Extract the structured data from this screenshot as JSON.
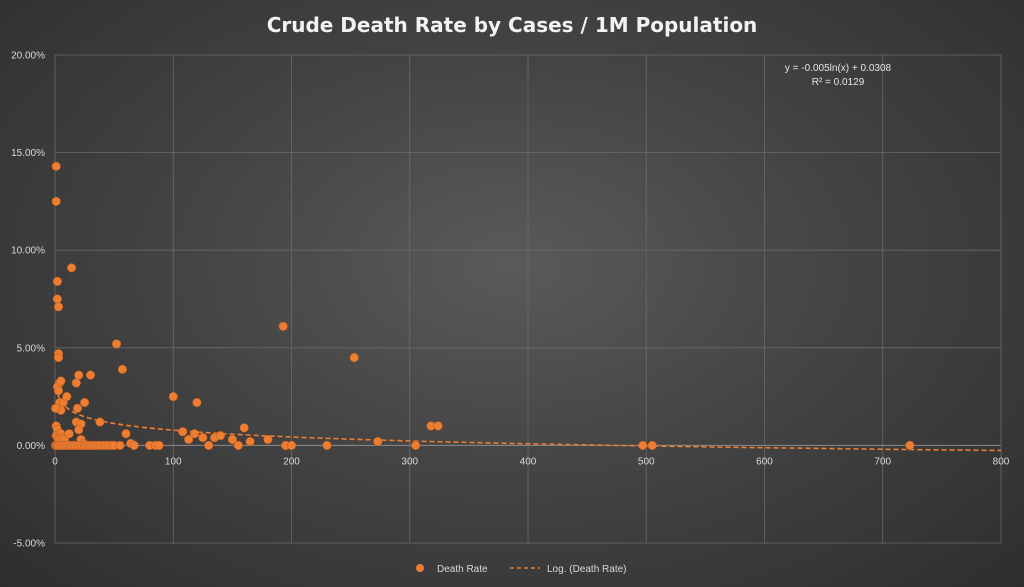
{
  "chart_data": {
    "type": "scatter",
    "title": "Crude Death Rate by Cases / 1M Population",
    "xlabel": "",
    "ylabel": "",
    "xlim": [
      0,
      800
    ],
    "ylim": [
      -0.05,
      0.2
    ],
    "x_ticks": [
      0,
      100,
      200,
      300,
      400,
      500,
      600,
      700,
      800
    ],
    "x_tick_labels": [
      "0",
      "100",
      "200",
      "300",
      "400",
      "500",
      "600",
      "700",
      "800"
    ],
    "y_ticks": [
      -0.05,
      0,
      0.05,
      0.1,
      0.15,
      0.2
    ],
    "y_tick_labels": [
      "-5.00%",
      "0.00%",
      "5.00%",
      "10.00%",
      "15.00%",
      "20.00%"
    ],
    "grid": true,
    "legend_position": "bottom",
    "series": [
      {
        "name": "Death Rate",
        "kind": "scatter",
        "color": "#ed7d31",
        "x": [
          1,
          1,
          2,
          2,
          3,
          3,
          3,
          4,
          14,
          2,
          3,
          5,
          4,
          5,
          7,
          0.5,
          1,
          2,
          10,
          18,
          20,
          19,
          30,
          52,
          57,
          1,
          2,
          3,
          5,
          6,
          8,
          12,
          18,
          22,
          25,
          38,
          100,
          108,
          118,
          120,
          113,
          125,
          135,
          140,
          150,
          160,
          165,
          180,
          193,
          253,
          318,
          324,
          273,
          20,
          22,
          24,
          60,
          64,
          0.5,
          1,
          2,
          3,
          5,
          7,
          9,
          11,
          13,
          15,
          17,
          19,
          21,
          23,
          25,
          27,
          29,
          31,
          33,
          35,
          37,
          39,
          42,
          45,
          48,
          50,
          55,
          67,
          80,
          85,
          88,
          130,
          155,
          195,
          200,
          230,
          305,
          497,
          505,
          723
        ],
        "y": [
          0.143,
          0.125,
          0.084,
          0.075,
          0.071,
          0.047,
          0.045,
          0.032,
          0.091,
          0.03,
          0.028,
          0.033,
          0.022,
          0.018,
          0.022,
          0.019,
          0.01,
          0.008,
          0.025,
          0.032,
          0.036,
          0.019,
          0.036,
          0.052,
          0.039,
          0.005,
          0.004,
          0.003,
          0.006,
          0.004,
          0.003,
          0.006,
          0.012,
          0.011,
          0.022,
          0.012,
          0.025,
          0.007,
          0.006,
          0.022,
          0.003,
          0.004,
          0.004,
          0.005,
          0.003,
          0.009,
          0.002,
          0.003,
          0.061,
          0.045,
          0.01,
          0.01,
          0.002,
          0.008,
          0.003,
          0.001,
          0.006,
          0.001,
          0.0,
          0.0,
          0.0,
          0.0,
          0.0,
          0.0,
          0.0,
          0.0,
          0.0,
          0.0,
          0.0,
          0.0,
          0.0,
          0.0,
          0.0,
          0.0,
          0.0,
          0.0,
          0.0,
          0.0,
          0.0,
          0.0,
          0.0,
          0.0,
          0.0,
          0.0,
          0.0,
          0.0,
          0.0,
          0.0,
          0.0,
          0.0,
          0.0,
          0.0,
          0.0,
          0.0,
          0.0,
          0.0,
          0.0,
          0.0
        ]
      },
      {
        "name": "Log. (Death Rate)",
        "kind": "trendline",
        "style": "dashed",
        "color": "#ed7d31",
        "model": "logarithmic",
        "a": -0.005,
        "b": 0.0308
      }
    ],
    "annotations": [
      "y = -0.005ln(x) + 0.0308",
      "R² = 0.0129"
    ]
  }
}
